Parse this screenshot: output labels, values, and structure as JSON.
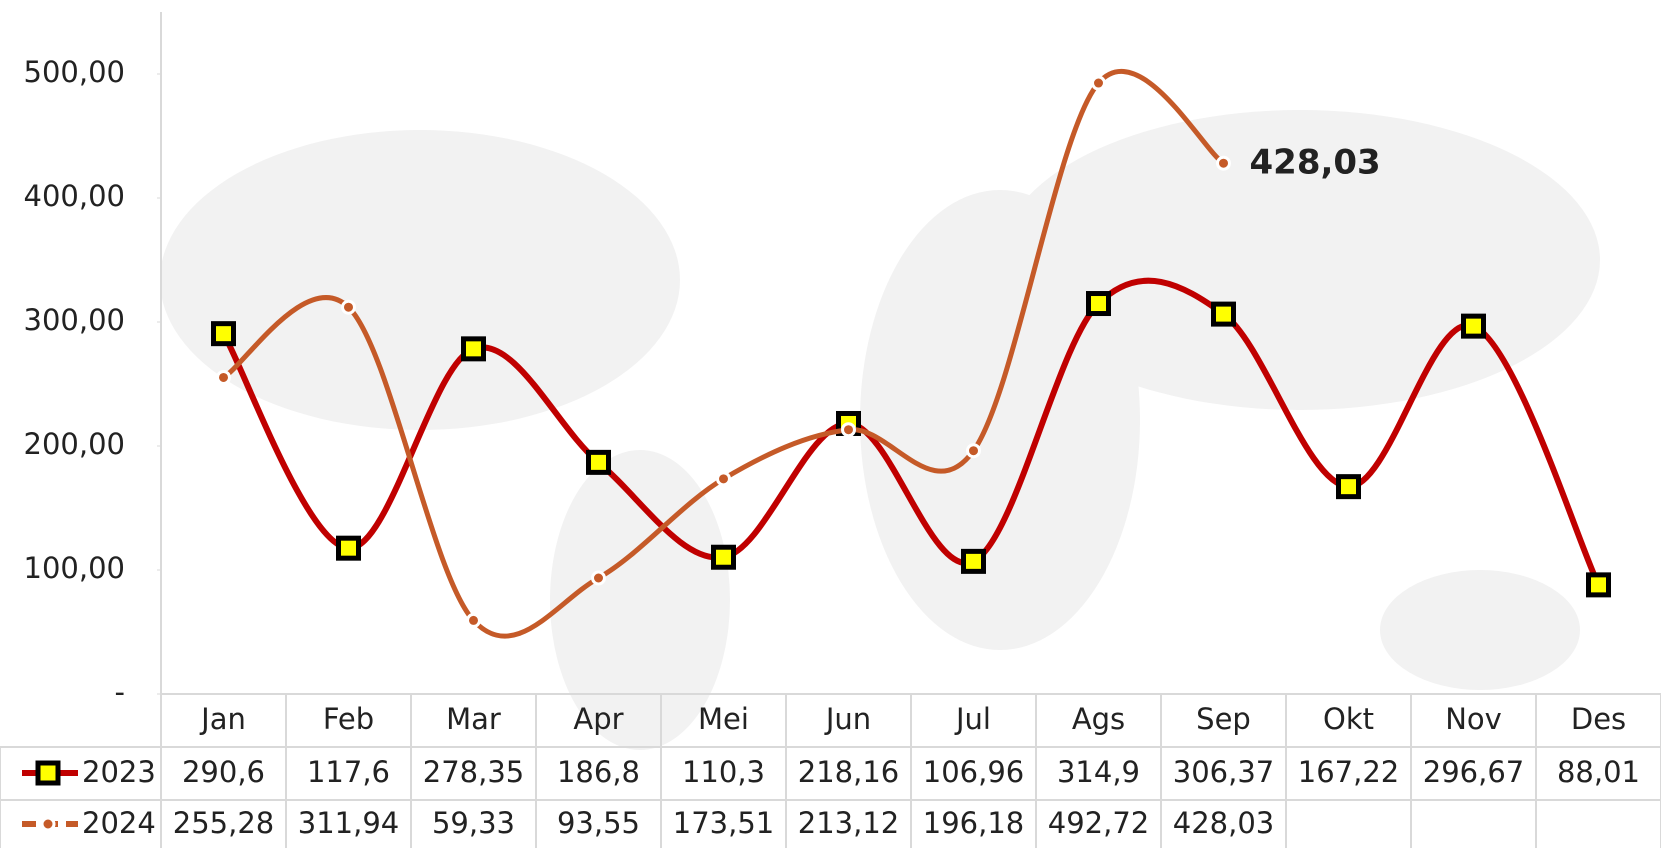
{
  "chart_data": {
    "type": "line",
    "categories": [
      "Jan",
      "Feb",
      "Mar",
      "Apr",
      "Mei",
      "Jun",
      "Jul",
      "Ags",
      "Sep",
      "Okt",
      "Nov",
      "Des"
    ],
    "series": [
      {
        "name": "2023",
        "color": "#c00000",
        "values": [
          290.6,
          117.6,
          278.35,
          186.8,
          110.3,
          218.16,
          106.96,
          314.9,
          306.37,
          167.22,
          296.67,
          88.01
        ],
        "value_labels": [
          "290,6",
          "117,6",
          "278,35",
          "186,8",
          "110,3",
          "218,16",
          "106,96",
          "314,9",
          "306,37",
          "167,22",
          "296,67",
          "88,01"
        ]
      },
      {
        "name": "2024",
        "color": "#c55a28",
        "values": [
          255.28,
          311.94,
          59.33,
          93.55,
          173.51,
          213.12,
          196.18,
          492.72,
          428.03,
          null,
          null,
          null
        ],
        "value_labels": [
          "255,28",
          "311,94",
          "59,33",
          "93,55",
          "173,51",
          "213,12",
          "196,18",
          "492,72",
          "428,03",
          null,
          null,
          null
        ]
      }
    ],
    "ylim": [
      0,
      550
    ],
    "yticks": [
      {
        "value": 0,
        "label": "-"
      },
      {
        "value": 100,
        "label": "100,00"
      },
      {
        "value": 200,
        "label": "200,00"
      },
      {
        "value": 300,
        "label": "300,00"
      },
      {
        "value": 400,
        "label": "400,00"
      },
      {
        "value": 500,
        "label": "500,00"
      }
    ]
  }
}
